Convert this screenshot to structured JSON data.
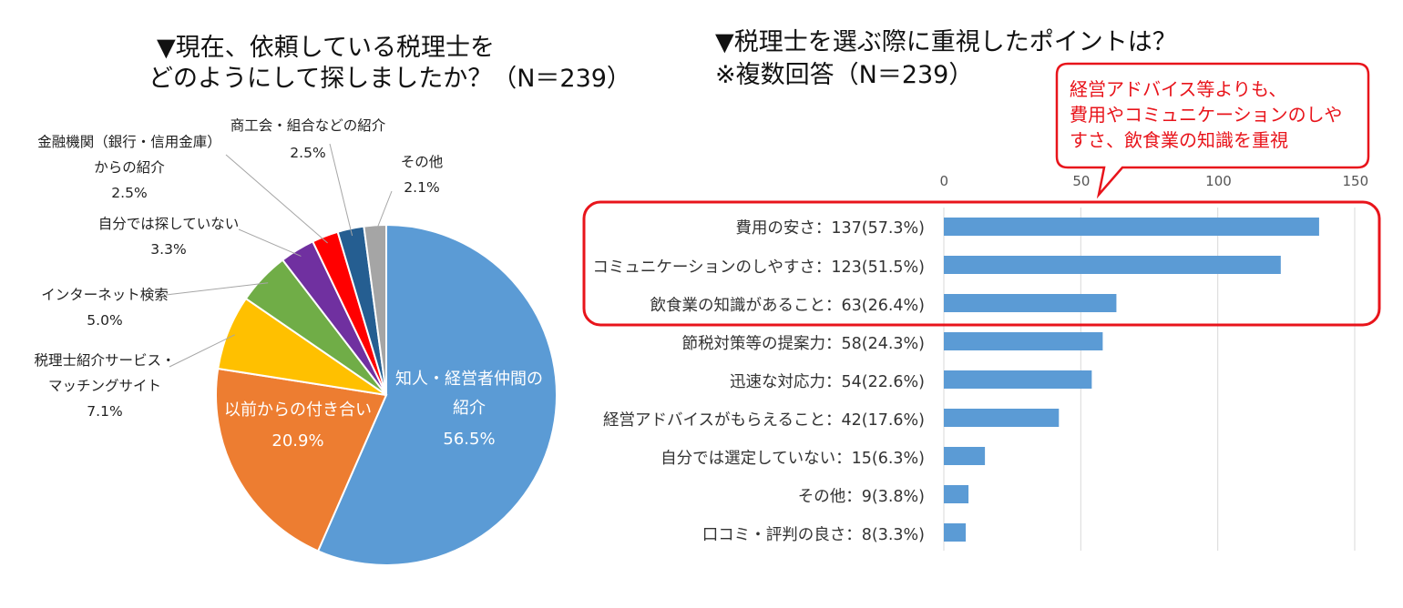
{
  "left_title": {
    "line1": "▼現在、依頼している税理士を",
    "line2": "どのようにして探しましたか？（N＝239）"
  },
  "right_title": {
    "line1": "▼税理士を選ぶ際に重視したポイントは？",
    "line2": "※複数回答（N＝239）"
  },
  "callout": {
    "line1": "経営アドバイス等よりも、",
    "line2": "費用やコミュニケーションのしや",
    "line3": "すさ、飲食業の知識を重視",
    "color": "#e8141b"
  },
  "chart_data": [
    {
      "type": "pie",
      "title": "▼現在、依頼している税理士をどのようにして探しましたか？（N＝239）",
      "slices": [
        {
          "label": "知人・経営者仲間の紹介",
          "pct_text": "56.5%",
          "value": 56.5,
          "color": "#5b9bd5"
        },
        {
          "label": "以前からの付き合い",
          "pct_text": "20.9%",
          "value": 20.9,
          "color": "#ed7d31"
        },
        {
          "label": "税理士紹介サービス・マッチングサイト",
          "pct_text": "7.1%",
          "value": 7.1,
          "color": "#ffc000"
        },
        {
          "label": "インターネット検索",
          "pct_text": "5.0%",
          "value": 5.0,
          "color": "#70ad47"
        },
        {
          "label": "自分では探していない",
          "pct_text": "3.3%",
          "value": 3.3,
          "color": "#7030a0"
        },
        {
          "label": "金融機関（銀行・信用金庫）からの紹介",
          "pct_text": "2.5%",
          "value": 2.5,
          "color": "#ff0000"
        },
        {
          "label": "商工会・組合などの紹介",
          "pct_text": "2.5%",
          "value": 2.5,
          "color": "#255e91"
        },
        {
          "label": "その他",
          "pct_text": "2.1%",
          "value": 2.1,
          "color": "#a5a5a5"
        }
      ],
      "label_text": {
        "s0a": "知人・経営者仲間の",
        "s0b": "紹介",
        "s1": "以前からの付き合い",
        "s2a": "税理士紹介サービス・",
        "s2b": "マッチングサイト",
        "s5a": "金融機関（銀行・信用金庫）",
        "s5b": "からの紹介"
      }
    },
    {
      "type": "bar",
      "orientation": "horizontal",
      "title": "▼税理士を選ぶ際に重視したポイントは？※複数回答（N＝239）",
      "categories": [
        "費用の安さ：137(57.3%)",
        "コミュニケーションのしやすさ：123(51.5%)",
        "飲食業の知識があること：63(26.4%)",
        "節税対策等の提案力：58(24.3%)",
        "迅速な対応力：54(22.6%)",
        "経営アドバイスがもらえること：42(17.6%)",
        "自分では選定していない：15(6.3%)",
        "その他：9(3.8%)",
        "口コミ・評判の良さ：8(3.3%)"
      ],
      "values": [
        137,
        123,
        63,
        58,
        54,
        42,
        15,
        9,
        8
      ],
      "xlim": [
        0,
        150
      ],
      "ticks": [
        "0",
        "50",
        "100",
        "150"
      ],
      "tick_values": [
        0,
        50,
        100,
        150
      ],
      "bar_color": "#5b9bd5",
      "highlight_color": "#e8141b",
      "highlight_count": 3
    }
  ]
}
